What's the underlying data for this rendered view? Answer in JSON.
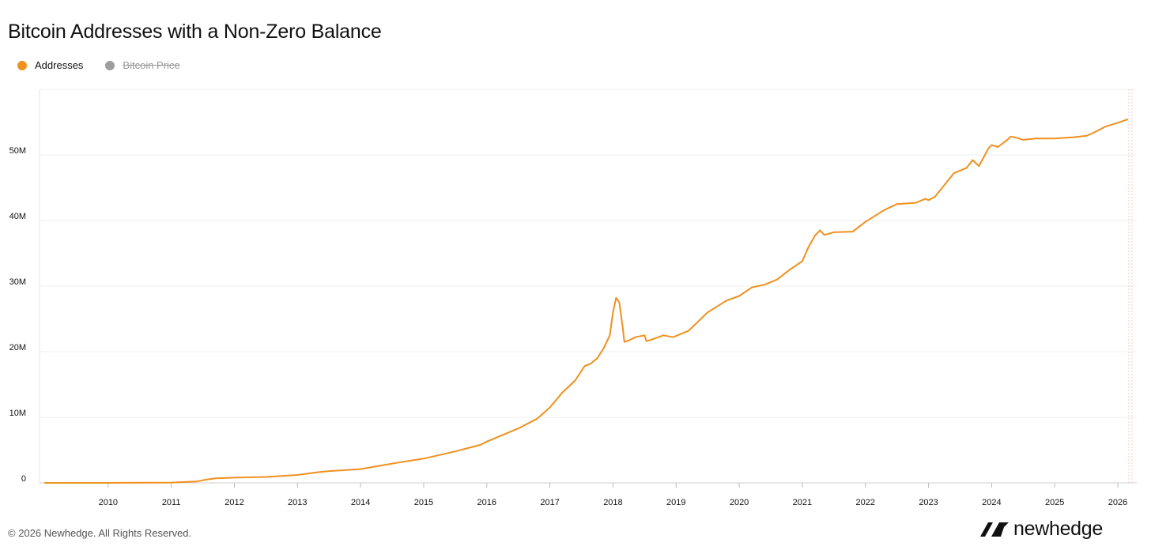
{
  "chart_data": {
    "type": "line",
    "title": "Bitcoin Addresses with a Non-Zero Balance",
    "legend": [
      {
        "name": "Addresses",
        "color": "#f0901e",
        "active": true
      },
      {
        "name": "Bitcoin Price",
        "color": "#9e9e9e",
        "active": false
      }
    ],
    "legend_placement": "top-left",
    "grid": true,
    "xlim": [
      2009.0,
      2026.2
    ],
    "ylim": [
      0,
      60000000
    ],
    "x_ticks": [
      2010,
      2011,
      2012,
      2013,
      2014,
      2015,
      2016,
      2017,
      2018,
      2019,
      2020,
      2021,
      2022,
      2023,
      2024,
      2025,
      2026
    ],
    "y_ticks": [
      {
        "value": 0,
        "label": "0"
      },
      {
        "value": 10000000,
        "label": "10M"
      },
      {
        "value": 20000000,
        "label": "20M"
      },
      {
        "value": 30000000,
        "label": "30M"
      },
      {
        "value": 40000000,
        "label": "40M"
      },
      {
        "value": 50000000,
        "label": "50M"
      }
    ],
    "series": [
      {
        "name": "Addresses",
        "color": "#f0901e",
        "x": [
          2009.0,
          2010.0,
          2011.0,
          2011.4,
          2011.55,
          2011.7,
          2012.0,
          2012.5,
          2013.0,
          2013.3,
          2013.5,
          2014.0,
          2014.3,
          2014.6,
          2015.0,
          2015.5,
          2015.7,
          2015.9,
          2016.0,
          2016.1,
          2016.2,
          2016.3,
          2016.5,
          2016.8,
          2017.0,
          2017.2,
          2017.4,
          2017.55,
          2017.65,
          2017.75,
          2017.85,
          2017.95,
          2018.0,
          2018.05,
          2018.1,
          2018.15,
          2018.18,
          2018.25,
          2018.35,
          2018.5,
          2018.53,
          2018.6,
          2018.8,
          2018.95,
          2019.0,
          2019.2,
          2019.5,
          2019.8,
          2020.0,
          2020.2,
          2020.4,
          2020.6,
          2020.8,
          2021.0,
          2021.1,
          2021.2,
          2021.28,
          2021.35,
          2021.5,
          2021.8,
          2022.0,
          2022.3,
          2022.5,
          2022.8,
          2022.95,
          2023.0,
          2023.1,
          2023.2,
          2023.4,
          2023.6,
          2023.7,
          2023.8,
          2023.95,
          2024.0,
          2024.1,
          2024.25,
          2024.3,
          2024.4,
          2024.5,
          2024.7,
          2025.0,
          2025.3,
          2025.5,
          2025.6,
          2025.8,
          2026.0,
          2026.15
        ],
        "values": [
          0,
          0,
          50000,
          200000,
          500000,
          700000,
          800000,
          900000,
          1200000,
          1600000,
          1800000,
          2100000,
          2600000,
          3100000,
          3700000,
          4800000,
          5300000,
          5800000,
          6300000,
          6700000,
          7100000,
          7500000,
          8300000,
          9800000,
          11500000,
          13800000,
          15600000,
          17800000,
          18200000,
          19000000,
          20500000,
          22500000,
          26000000,
          28200000,
          27500000,
          24000000,
          21500000,
          21700000,
          22200000,
          22500000,
          21600000,
          21800000,
          22500000,
          22200000,
          22400000,
          23200000,
          26000000,
          27800000,
          28500000,
          29800000,
          30200000,
          31000000,
          32500000,
          33800000,
          36000000,
          37700000,
          38500000,
          37800000,
          38200000,
          38300000,
          39800000,
          41600000,
          42500000,
          42700000,
          43300000,
          43100000,
          43600000,
          44800000,
          47200000,
          48000000,
          49200000,
          48300000,
          51000000,
          51500000,
          51200000,
          52300000,
          52800000,
          52600000,
          52300000,
          52500000,
          52500000,
          52700000,
          52900000,
          53300000,
          54300000,
          54900000,
          55400000
        ]
      }
    ]
  },
  "footer": {
    "copyright": "© 2026 Newhedge. All Rights Reserved."
  },
  "brand": {
    "name": "newhedge"
  }
}
